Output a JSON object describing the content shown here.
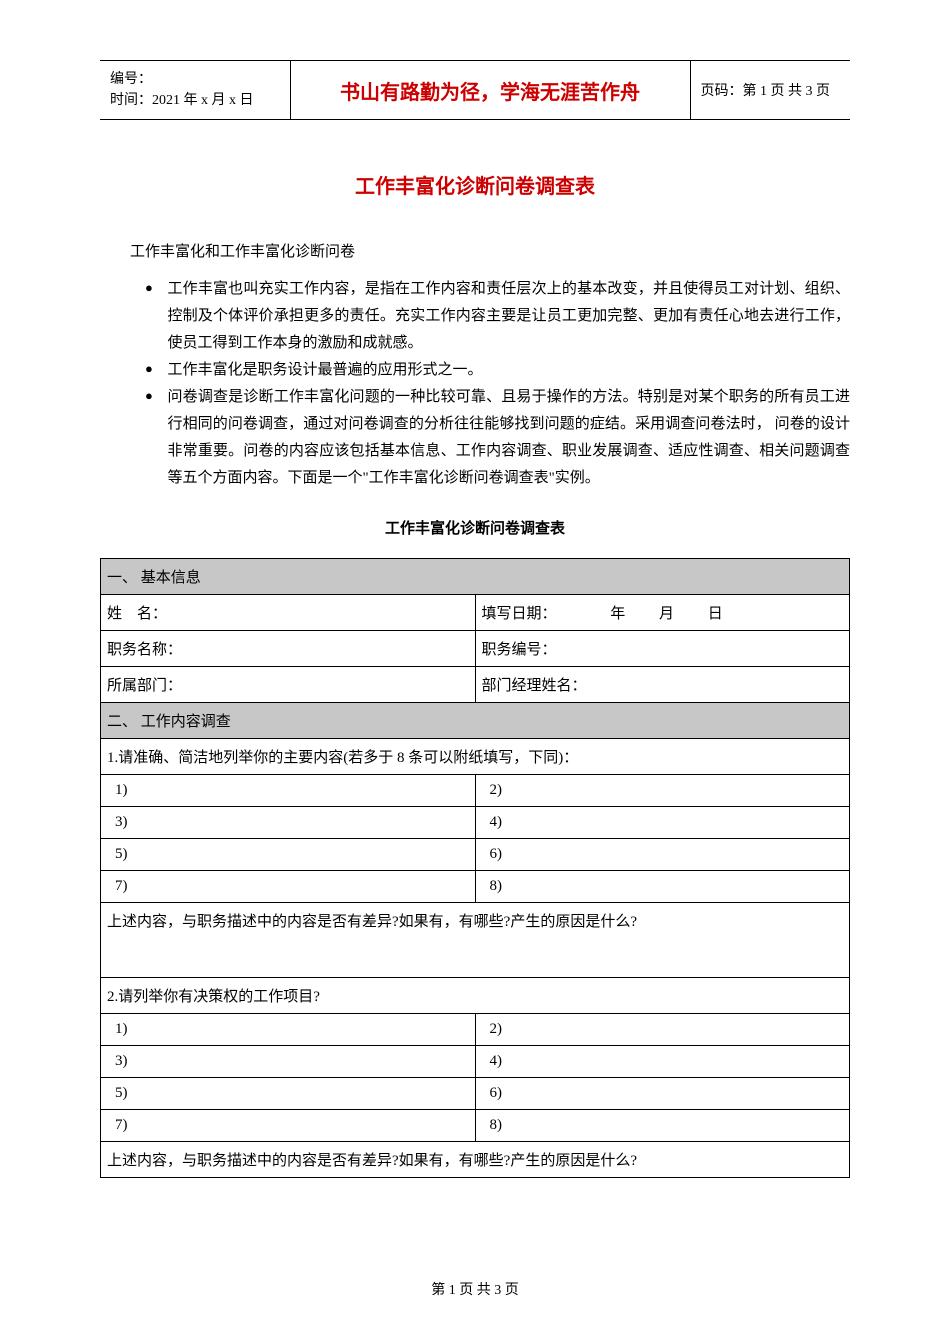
{
  "header": {
    "serial_label": "编号：",
    "time_label": "时间：2021 年 x 月 x 日",
    "motto": "书山有路勤为径，学海无涯苦作舟",
    "page_label": "页码：第 1 页 共 3 页"
  },
  "title": "工作丰富化诊断问卷调查表",
  "intro": "工作丰富化和工作丰富化诊断问卷",
  "bullets": {
    "b1": "工作丰富也叫充实工作内容，是指在工作内容和责任层次上的基本改变，并且使得员工对计划、组织、控制及个体评价承担更多的责任。充实工作内容主要是让员工更加完整、更加有责任心地去进行工作，使员工得到工作本身的激励和成就感。",
    "b2": "工作丰富化是职务设计最普遍的应用形式之一。",
    "b3": "问卷调查是诊断工作丰富化问题的一种比较可靠、且易于操作的方法。特别是对某个职务的所有员工进行相同的问卷调查，通过对问卷调查的分析往往能够找到问题的症结。采用调查问卷法时， 问卷的设计非常重要。问卷的内容应该包括基本信息、工作内容调查、职业发展调查、适应性调查、相关问题调查等五个方面内容。下面是一个\"工作丰富化诊断问卷调查表\"实例。"
  },
  "table_title": "工作丰富化诊断问卷调查表",
  "sections": {
    "s1": "一、  基本信息",
    "s2": "二、  工作内容调查"
  },
  "basic_info": {
    "name_label": "姓",
    "name_label2": "名：",
    "date_label": "填写日期：",
    "year": "年",
    "month": "月",
    "day": "日",
    "job_title_label": "职务名称：",
    "job_code_label": "职务编号：",
    "dept_label": "所属部门：",
    "manager_label": "部门经理姓名："
  },
  "questions": {
    "q1": "1.请准确、简洁地列举你的主要内容(若多于 8 条可以附纸填写，下同)：",
    "q2": "2.请列举你有决策权的工作项目?",
    "diff": "上述内容，与职务描述中的内容是否有差异?如果有，有哪些?产生的原因是什么?"
  },
  "items": {
    "i1": "1)",
    "i2": "2)",
    "i3": "3)",
    "i4": "4)",
    "i5": "5)",
    "i6": "6)",
    "i7": "7)",
    "i8": "8)"
  },
  "footer": "第  1  页  共  3  页",
  "colors": {
    "accent": "#cc0000",
    "section_bg": "#c7c7c7",
    "border": "#000000",
    "text": "#000000",
    "background": "#ffffff"
  }
}
